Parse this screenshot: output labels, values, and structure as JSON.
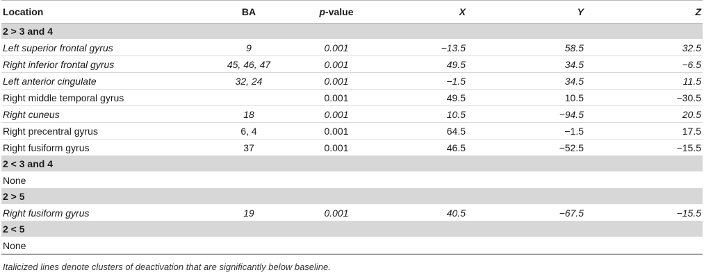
{
  "headers": {
    "location": "Location",
    "ba": "BA",
    "p_italic": "p",
    "p_rest": "-value",
    "x": "X",
    "y": "Y",
    "z": "Z"
  },
  "sections": [
    {
      "label": "2 > 3 and 4",
      "rows": [
        {
          "location": "Left superior frontal gyrus",
          "ba": "9",
          "p": "0.001",
          "x": "−13.5",
          "y": "58.5",
          "z": "32.5",
          "italic": true
        },
        {
          "location": "Right inferior frontal gyrus",
          "ba": "45, 46, 47",
          "p": "0.001",
          "x": "49.5",
          "y": "34.5",
          "z": "−6.5",
          "italic": true
        },
        {
          "location": "Left anterior cingulate",
          "ba": "32, 24",
          "p": "0.001",
          "x": "−1.5",
          "y": "34.5",
          "z": "11.5",
          "italic": true
        },
        {
          "location": "Right middle temporal gyrus",
          "ba": "",
          "p": "0.001",
          "x": "49.5",
          "y": "10.5",
          "z": "−30.5",
          "italic": false
        },
        {
          "location": "Right cuneus",
          "ba": "18",
          "p": "0.001",
          "x": "10.5",
          "y": "−94.5",
          "z": "20.5",
          "italic": true
        },
        {
          "location": "Right precentral gyrus",
          "ba": "6, 4",
          "p": "0.001",
          "x": "64.5",
          "y": "−1.5",
          "z": "17.5",
          "italic": false
        },
        {
          "location": "Right fusiform gyrus",
          "ba": "37",
          "p": "0.001",
          "x": "46.5",
          "y": "−52.5",
          "z": "−15.5",
          "italic": false
        }
      ]
    },
    {
      "label": "2 < 3 and 4",
      "rows": [
        {
          "location": "None",
          "ba": "",
          "p": "",
          "x": "",
          "y": "",
          "z": "",
          "italic": false
        }
      ]
    },
    {
      "label": "2 > 5",
      "rows": [
        {
          "location": "Right fusiform gyrus",
          "ba": "19",
          "p": "0.001",
          "x": "40.5",
          "y": "−67.5",
          "z": "−15.5",
          "italic": true
        }
      ]
    },
    {
      "label": "2 < 5",
      "rows": [
        {
          "location": "None",
          "ba": "",
          "p": "",
          "x": "",
          "y": "",
          "z": "",
          "italic": false
        }
      ]
    }
  ],
  "footnote": "Italicized lines denote clusters of deactivation that are significantly below baseline."
}
